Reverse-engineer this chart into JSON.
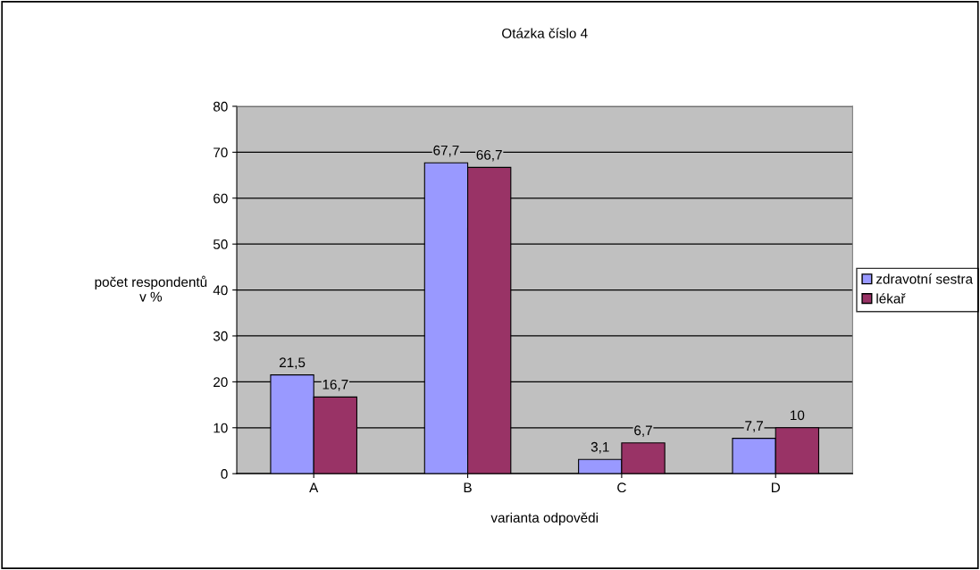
{
  "chart_data": {
    "type": "bar",
    "title": "Otázka číslo 4",
    "xlabel": "varianta odpovědi",
    "ylabel": "počet respondentů\nv %",
    "categories": [
      "A",
      "B",
      "C",
      "D"
    ],
    "series": [
      {
        "name": "zdravotní sestra",
        "color": "#9999ff",
        "values": [
          21.5,
          67.7,
          3.1,
          7.7
        ],
        "value_labels": [
          "21,5",
          "67,7",
          "3,1",
          "7,7"
        ]
      },
      {
        "name": "lékař",
        "color": "#993366",
        "values": [
          16.7,
          66.7,
          6.7,
          10
        ],
        "value_labels": [
          "16,7",
          "66,7",
          "6,7",
          "10"
        ]
      }
    ],
    "ylim": [
      0,
      80
    ],
    "yticks": [
      0,
      10,
      20,
      30,
      40,
      50,
      60,
      70,
      80
    ],
    "grid": "y",
    "legend": "right"
  }
}
